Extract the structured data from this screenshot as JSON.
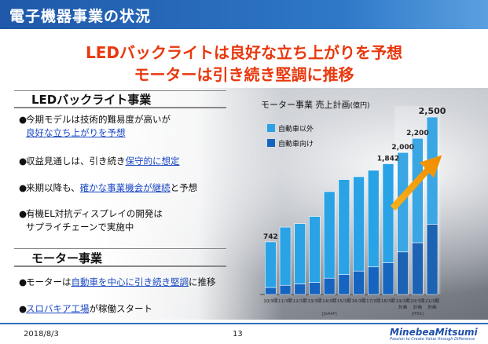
{
  "header": {
    "title": "電子機器事業の状況"
  },
  "headline": {
    "line1": "LEDバックライトは良好な立ち上がりを予想",
    "line2": "モーターは引き続き堅調に推移"
  },
  "led": {
    "title": "LEDバックライト事業",
    "bullets": [
      {
        "pre": "今期モデルは技術的難易度が高いが",
        "link": "",
        "post": ""
      },
      {
        "pre": "",
        "link": "良好な立ち上がりを予想",
        "post": ""
      },
      {
        "pre": "収益見通しは、引き続き",
        "link": "保守的に想定",
        "post": ""
      },
      {
        "pre": "来期以降も、",
        "link": "確かな事業機会が継続",
        "post": "と予想"
      },
      {
        "pre": "有機EL対抗ディスプレイの開発は",
        "link": "",
        "post": ""
      },
      {
        "pre": "サプライチェーンで実施中",
        "link": "",
        "post": ""
      }
    ]
  },
  "motor": {
    "title": "モーター事業",
    "bullets": [
      {
        "pre": "モーターは",
        "link": "自動車を中心に引き続き堅調",
        "post": "に推移"
      },
      {
        "pre": "",
        "link": "スロバキア工場",
        "post": "が稼働スタート"
      }
    ]
  },
  "chart_data": {
    "type": "bar",
    "title": "モーター事業 売上計画",
    "title_unit": "(億円)",
    "categories": [
      "10/3期",
      "11/3期",
      "12/3期",
      "13/3期",
      "14/3期",
      "15/3期",
      "16/3期",
      "17/3期",
      "18/3期",
      "19/3期 計画",
      "20/3期 計画",
      "21/3期 計画"
    ],
    "series": [
      {
        "name": "自動車向け",
        "color": "#1565c0",
        "values": [
          100,
          130,
          150,
          170,
          230,
          280,
          330,
          390,
          450,
          600,
          730,
          990
        ]
      },
      {
        "name": "自動車以外",
        "color": "#29a3e6",
        "values": [
          642,
          820,
          850,
          930,
          1220,
          1340,
          1330,
          1360,
          1392,
          1400,
          1470,
          1510
        ]
      }
    ],
    "totals": [
      742,
      null,
      null,
      null,
      null,
      null,
      null,
      null,
      1842,
      2000,
      2200,
      2500
    ],
    "total_labels": [
      "742",
      "",
      "",
      "",
      "",
      "",
      "",
      "",
      "1,842",
      "2,000",
      "2,200",
      "2,500"
    ],
    "ylim": [
      0,
      2600
    ],
    "axis_groups": [
      "[JGAAP]",
      "[IFRS]"
    ],
    "legend_placement": "top-left"
  },
  "footer": {
    "date": "2018/8/3",
    "page": "13",
    "logo": "MinebeaMitsumi",
    "tagline": "Passion to Create Value through Difference"
  }
}
